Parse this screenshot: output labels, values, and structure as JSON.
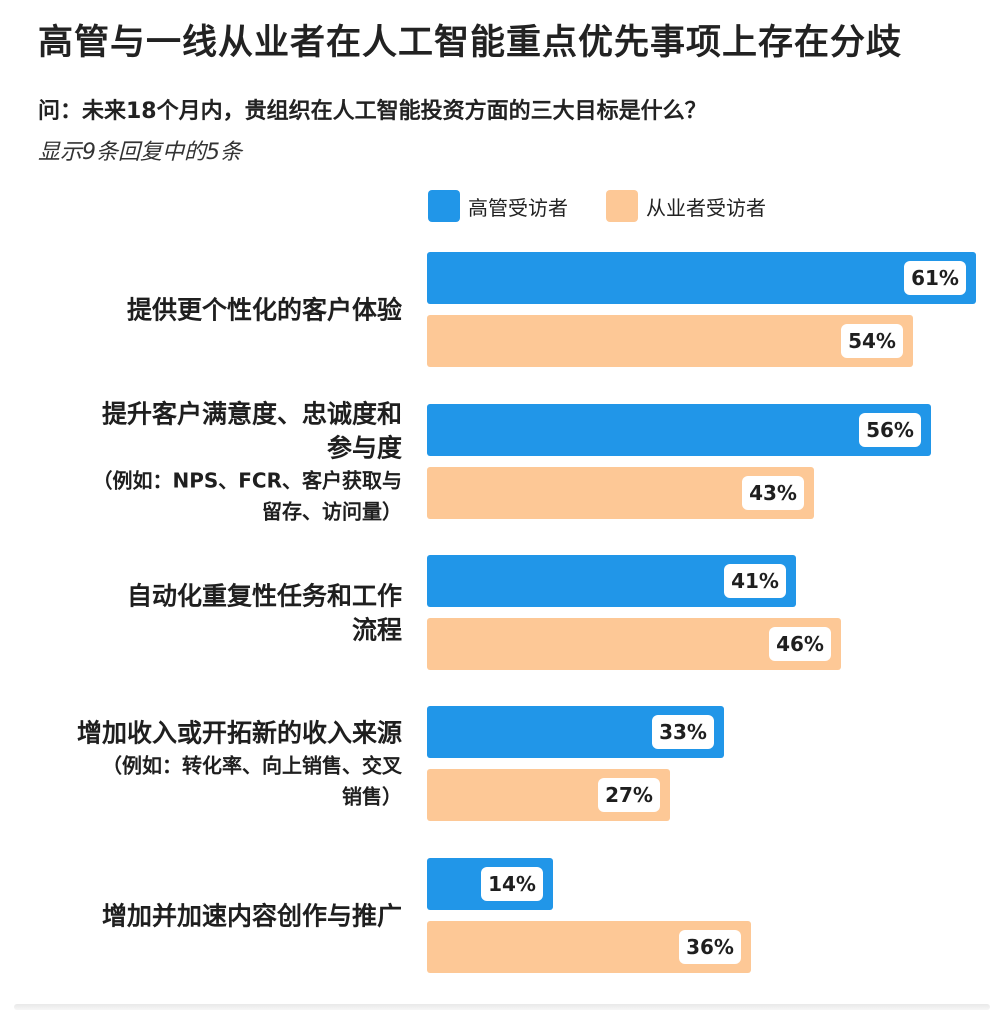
{
  "header": {
    "title": "高管与一线从业者在人工智能重点优先事项上存在分歧",
    "question": "问：未来18个月内，贵组织在人工智能投资方面的三大目标是什么？",
    "subtitle": "显示9条回复中的5条"
  },
  "legend": {
    "placement": "top",
    "items": [
      {
        "name": "高管受访者",
        "color": "#2196e8"
      },
      {
        "name": "从业者受访者",
        "color": "#fdc896"
      }
    ]
  },
  "chart_data": {
    "type": "bar",
    "orientation": "horizontal",
    "title": "高管与一线从业者在人工智能重点优先事项上存在分歧",
    "subtitle": "显示9条回复中的5条",
    "xlim": [
      0,
      61
    ],
    "grid": false,
    "legend_position": "top",
    "categories": [
      {
        "lines": [
          "提供更个性化的客户体验"
        ],
        "notes": []
      },
      {
        "lines": [
          "提升客户满意度、忠诚度和",
          "参与度"
        ],
        "notes": [
          "（例如：NPS、FCR、客户获取与",
          "留存、访问量）"
        ]
      },
      {
        "lines": [
          "自动化重复性任务和工作",
          "流程"
        ],
        "notes": []
      },
      {
        "lines": [
          "增加收入或开拓新的收入来源"
        ],
        "notes": [
          "（例如：转化率、向上销售、交叉",
          "销售）"
        ]
      },
      {
        "lines": [
          "增加并加速内容创作与推广"
        ],
        "notes": []
      }
    ],
    "series": [
      {
        "name": "高管受访者",
        "color": "#2196e8",
        "values": [
          61,
          56,
          41,
          33,
          14
        ],
        "labels": [
          "61%",
          "56%",
          "41%",
          "33%",
          "14%"
        ]
      },
      {
        "name": "从业者受访者",
        "color": "#fdc896",
        "values": [
          54,
          43,
          46,
          27,
          36
        ],
        "labels": [
          "54%",
          "43%",
          "46%",
          "27%",
          "36%"
        ]
      }
    ]
  }
}
